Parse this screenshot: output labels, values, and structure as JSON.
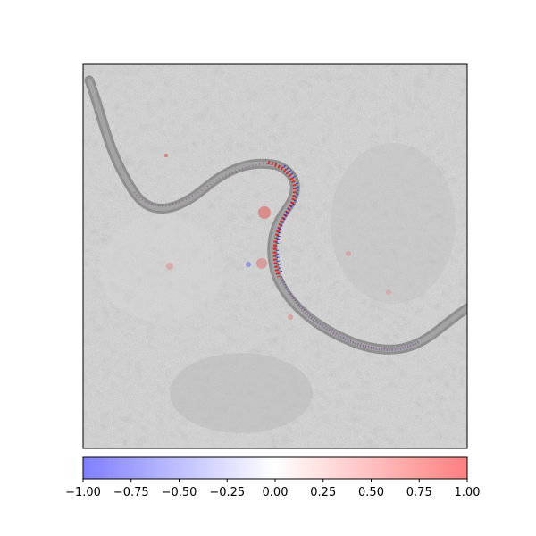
{
  "chart_data": {
    "type": "heatmap",
    "title": "",
    "xlabel": "",
    "ylabel": "",
    "image_axis_ticks": "none",
    "image_description_note": "grayscale photo overlaid with red/blue attribution map along a snake-like curve",
    "colorbar": {
      "orientation": "horizontal",
      "colormap": "bwr",
      "range": [
        -1.0,
        1.0
      ],
      "ticks": [
        -1.0,
        -0.75,
        -0.5,
        -0.25,
        0.0,
        0.25,
        0.5,
        0.75,
        1.0
      ],
      "tick_labels": [
        "−1.00",
        "−0.75",
        "−0.50",
        "−0.25",
        "0.00",
        "0.25",
        "0.50",
        "0.75",
        "1.00"
      ],
      "low_color": "#7f7fff",
      "mid_color": "#ffffff",
      "high_color": "#ff7f7f"
    }
  }
}
